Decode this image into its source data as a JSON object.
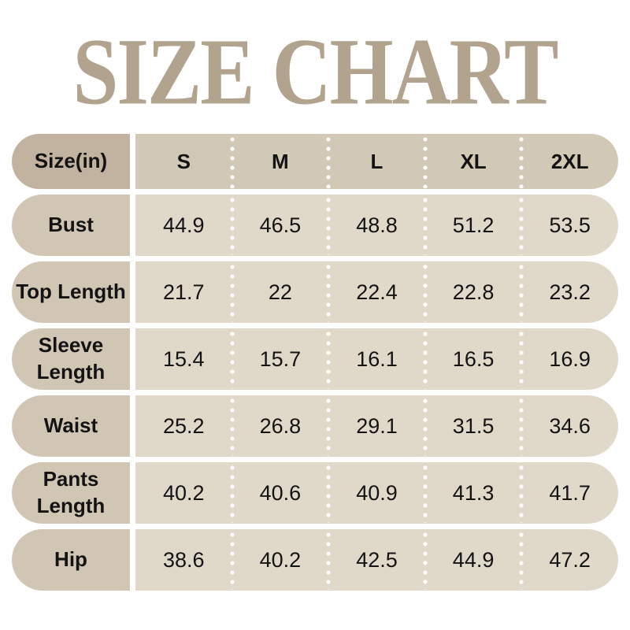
{
  "title": "SIZE CHART",
  "colors": {
    "title_text": "#b2a38e",
    "header_label_bg": "#c2b3a0",
    "header_values_bg": "#d2c8b6",
    "row_label_bg": "#d1c6b4",
    "row_values_bg": "#e0d8c9",
    "cell_text": "#131313",
    "separator_dots": "#ffffff",
    "background": "#ffffff"
  },
  "chart_data": {
    "type": "table",
    "title": "SIZE CHART",
    "unit": "in",
    "columns": [
      "Size(in)",
      "S",
      "M",
      "L",
      "XL",
      "2XL"
    ],
    "rows": [
      {
        "label": "Bust",
        "values": [
          "44.9",
          "46.5",
          "48.8",
          "51.2",
          "53.5"
        ]
      },
      {
        "label": "Top Length",
        "values": [
          "21.7",
          "22",
          "22.4",
          "22.8",
          "23.2"
        ]
      },
      {
        "label": "Sleeve Length",
        "values": [
          "15.4",
          "15.7",
          "16.1",
          "16.5",
          "16.9"
        ]
      },
      {
        "label": "Waist",
        "values": [
          "25.2",
          "26.8",
          "29.1",
          "31.5",
          "34.6"
        ]
      },
      {
        "label": "Pants Length",
        "values": [
          "40.2",
          "40.6",
          "40.9",
          "41.3",
          "41.7"
        ]
      },
      {
        "label": "Hip",
        "values": [
          "38.6",
          "40.2",
          "42.5",
          "44.9",
          "47.2"
        ]
      }
    ]
  }
}
